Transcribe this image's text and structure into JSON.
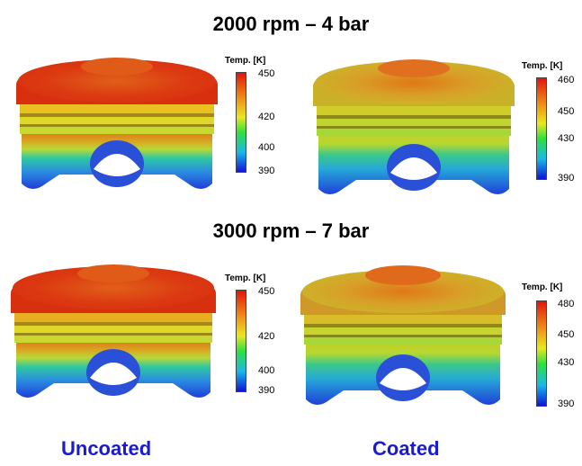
{
  "row1": {
    "title": "2000 rpm – 4 bar"
  },
  "row2": {
    "title": "3000 rpm – 7 bar"
  },
  "labels": {
    "uncoated": "Uncoated",
    "coated": "Coated"
  },
  "legends": {
    "r1_uncoated": {
      "title": "Temp. [K]",
      "ticks": [
        "450",
        "420",
        "400",
        "390"
      ]
    },
    "r1_coated": {
      "title": "Temp. [K]",
      "ticks": [
        "460",
        "450",
        "430",
        "390"
      ]
    },
    "r2_uncoated": {
      "title": "Temp. [K]",
      "ticks": [
        "450",
        "420",
        "400",
        "390"
      ]
    },
    "r2_coated": {
      "title": "Temp. [K]",
      "ticks": [
        "480",
        "450",
        "430",
        "390"
      ]
    }
  },
  "colors": {
    "label_blue": "#1a1ad6"
  }
}
